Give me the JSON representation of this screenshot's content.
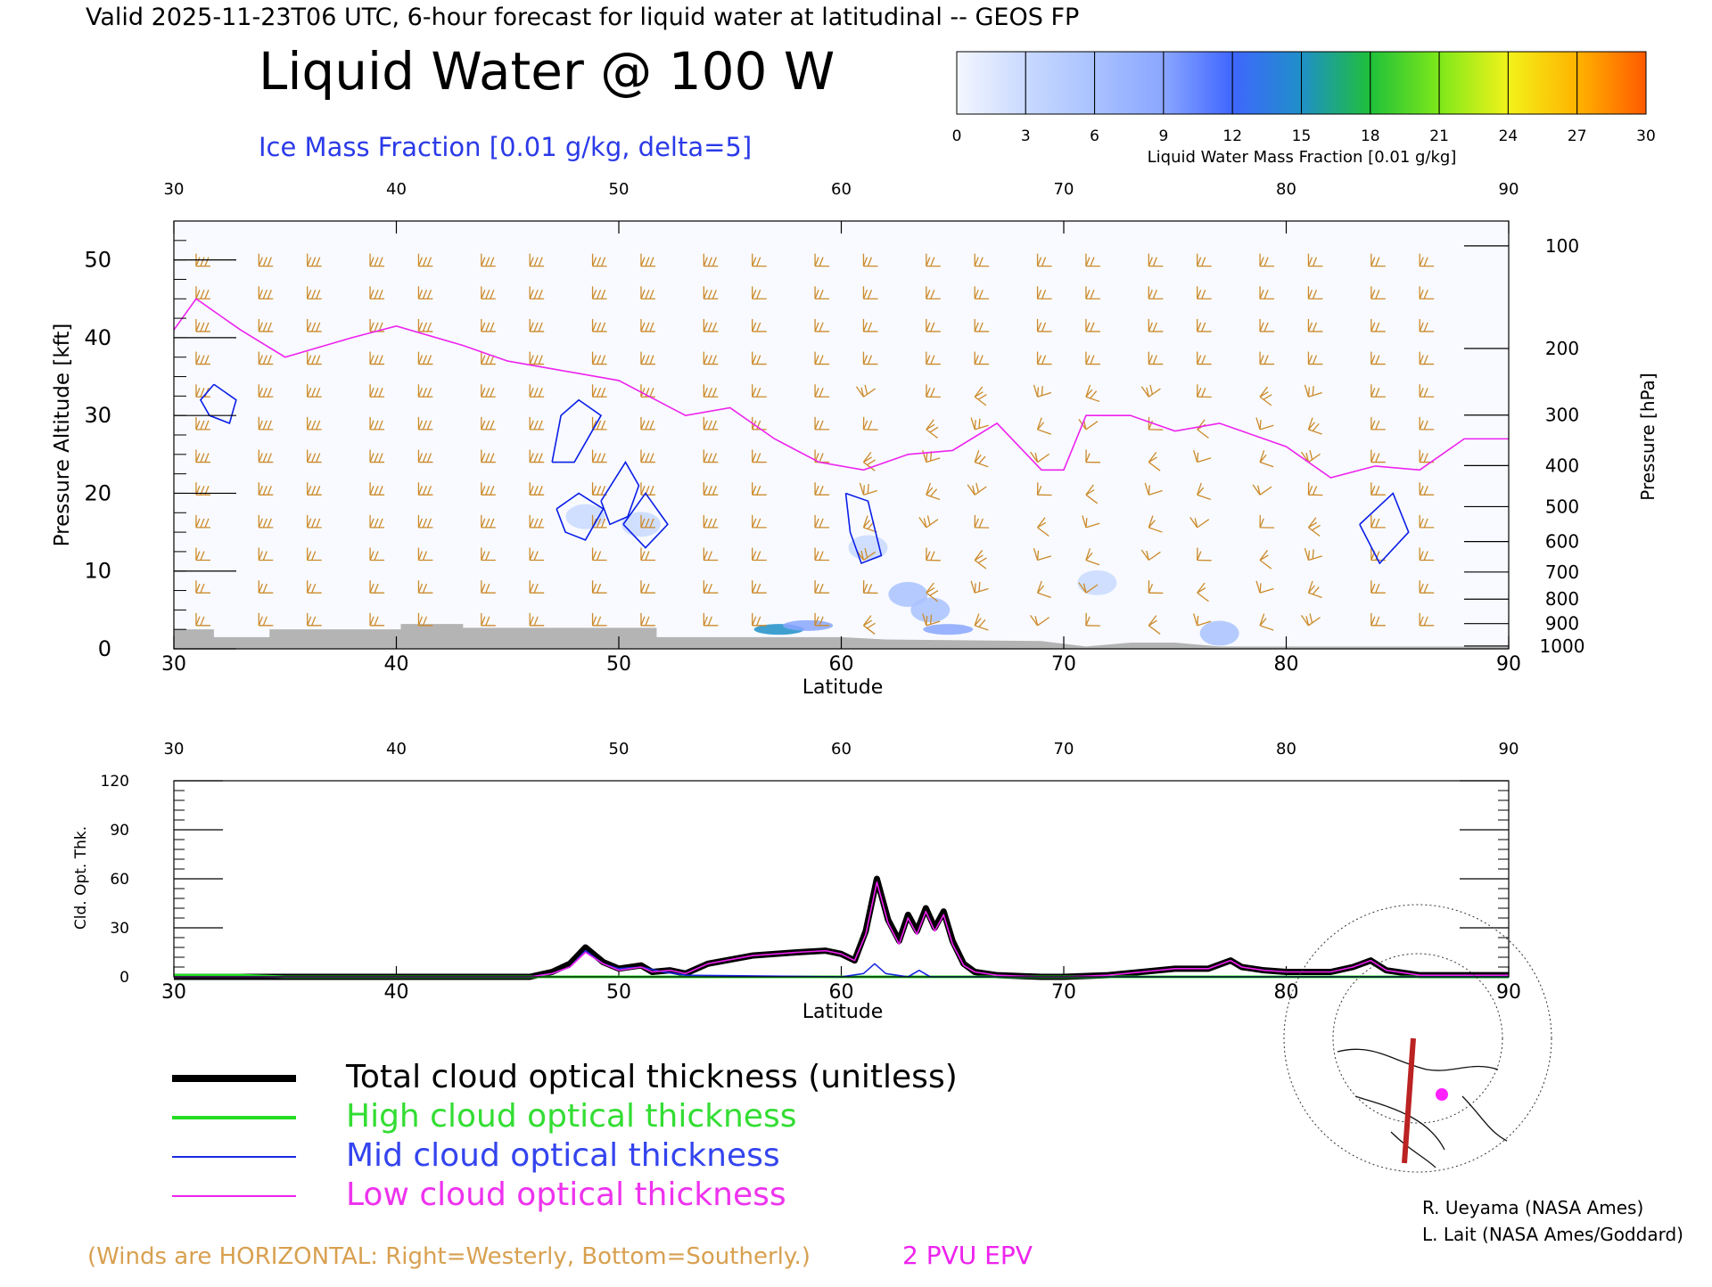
{
  "header": {
    "valid_line": "Valid 2025-11-23T06 UTC, 6-hour forecast for liquid water at latitudinal -- GEOS FP",
    "main_title": "Liquid Water @ 100 W",
    "subtitle": "Ice Mass Fraction [0.01 g/kg, delta=5]"
  },
  "colorbar": {
    "label": "Liquid Water Mass Fraction [0.01 g/kg]",
    "ticks": [
      "0",
      "3",
      "6",
      "9",
      "12",
      "15",
      "18",
      "21",
      "24",
      "27",
      "30"
    ],
    "colors": [
      "#f4f7ff",
      "#c9d9ff",
      "#a9c2ff",
      "#8aa6ff",
      "#3f66ff",
      "#1f8fc8",
      "#1fc03a",
      "#7ee81a",
      "#f2f21a",
      "#ffb300",
      "#ff5a00"
    ]
  },
  "colors": {
    "wind_barb": "#cc8a2a",
    "ice_contour": "#0a1ee6",
    "epv_line": "#ee22ee",
    "terrain": "#b4b4b4",
    "total": "#000000",
    "high": "#22dd22",
    "mid": "#1a2ae0",
    "low": "#ee22ee"
  },
  "chart_data": [
    {
      "type": "heatmap",
      "xlabel": "Latitude",
      "ylabel_left": "Pressure Altitude [kft]",
      "ylabel_right": "Pressure [hPa]",
      "xlim": [
        30,
        90
      ],
      "ylim": [
        0,
        55
      ],
      "x_ticks": [
        "30",
        "40",
        "50",
        "60",
        "70",
        "80",
        "90"
      ],
      "y_ticks_left": [
        "0",
        "10",
        "20",
        "30",
        "40",
        "50"
      ],
      "pressure_levels": [
        "100",
        "200",
        "300",
        "400",
        "500",
        "600",
        "700",
        "800",
        "900",
        "1000"
      ],
      "two_pvu_epv_kft": [
        [
          30,
          41
        ],
        [
          31,
          45
        ],
        [
          33,
          41
        ],
        [
          35,
          37.5
        ],
        [
          38,
          40
        ],
        [
          40,
          41.5
        ],
        [
          43,
          39
        ],
        [
          45,
          37
        ],
        [
          47,
          36
        ],
        [
          50,
          34.5
        ],
        [
          53,
          30
        ],
        [
          55,
          31
        ],
        [
          57,
          27
        ],
        [
          59,
          24
        ],
        [
          61,
          23
        ],
        [
          63,
          25
        ],
        [
          65,
          25.5
        ],
        [
          67,
          29
        ],
        [
          69,
          23
        ],
        [
          70,
          23
        ],
        [
          71,
          30
        ],
        [
          73,
          30
        ],
        [
          75,
          28
        ],
        [
          77,
          29
        ],
        [
          78,
          28
        ],
        [
          80,
          26
        ],
        [
          82,
          22
        ],
        [
          84,
          23.5
        ],
        [
          86,
          23
        ],
        [
          88,
          27
        ],
        [
          90,
          27
        ]
      ],
      "ice_mass_fraction_contours_5": [
        [
          [
            31.8,
            34
          ],
          [
            32.8,
            32
          ],
          [
            32.5,
            29
          ],
          [
            31.6,
            30
          ],
          [
            31.2,
            32
          ],
          [
            31.8,
            34
          ]
        ],
        [
          [
            47.0,
            24
          ],
          [
            47.4,
            30
          ],
          [
            48.2,
            32
          ],
          [
            49.2,
            30
          ],
          [
            48.0,
            24
          ],
          [
            47.0,
            24
          ]
        ],
        [
          [
            47.2,
            18
          ],
          [
            48.2,
            20
          ],
          [
            49.3,
            18
          ],
          [
            48.5,
            14
          ],
          [
            47.6,
            15
          ],
          [
            47.2,
            18
          ]
        ],
        [
          [
            49.2,
            19
          ],
          [
            50.3,
            24
          ],
          [
            50.9,
            21
          ],
          [
            50.4,
            17
          ],
          [
            49.6,
            16
          ],
          [
            49.2,
            19
          ]
        ],
        [
          [
            50.2,
            16
          ],
          [
            51.2,
            20
          ],
          [
            52.2,
            16
          ],
          [
            51.2,
            13
          ],
          [
            50.2,
            16
          ]
        ],
        [
          [
            60.2,
            20
          ],
          [
            61.2,
            19
          ],
          [
            61.8,
            12
          ],
          [
            60.9,
            11
          ],
          [
            60.4,
            15
          ],
          [
            60.2,
            20
          ]
        ],
        [
          [
            83.3,
            16
          ],
          [
            84.8,
            20
          ],
          [
            85.5,
            15
          ],
          [
            84.2,
            11
          ],
          [
            83.3,
            16
          ]
        ]
      ],
      "liquid_water_cells": [
        {
          "lat": 48.5,
          "kft": 17,
          "value": 3
        },
        {
          "lat": 51,
          "kft": 16,
          "value": 3
        },
        {
          "lat": 61.2,
          "kft": 13,
          "value": 3
        },
        {
          "lat": 63,
          "kft": 7,
          "value": 6
        },
        {
          "lat": 64,
          "kft": 5,
          "value": 6
        },
        {
          "lat": 57.2,
          "kft": 2.5,
          "value": 15
        },
        {
          "lat": 58.5,
          "kft": 3,
          "value": 9
        },
        {
          "lat": 64.8,
          "kft": 2.5,
          "value": 9
        },
        {
          "lat": 71.5,
          "kft": 8.5,
          "value": 3
        },
        {
          "lat": 77,
          "kft": 2,
          "value": 6
        }
      ],
      "terrain_kft": [
        [
          30,
          2.5
        ],
        [
          31.8,
          2.5
        ],
        [
          31.8,
          1.5
        ],
        [
          34.3,
          1.5
        ],
        [
          34.3,
          2.5
        ],
        [
          40.2,
          2.5
        ],
        [
          40.2,
          3.2
        ],
        [
          43,
          3.2
        ],
        [
          43,
          2.7
        ],
        [
          51.7,
          2.7
        ],
        [
          51.7,
          1.5
        ],
        [
          60,
          1.5
        ],
        [
          62,
          1.2
        ],
        [
          69,
          1.0
        ],
        [
          71,
          0.3
        ],
        [
          73,
          0.8
        ],
        [
          75,
          0.8
        ],
        [
          77,
          0.3
        ],
        [
          90,
          0.3
        ]
      ]
    },
    {
      "type": "line",
      "xlabel": "Latitude",
      "ylabel": "Cld. Opt. Thk.",
      "xlim": [
        30,
        90
      ],
      "ylim": [
        0,
        120
      ],
      "y_ticks": [
        "0",
        "30",
        "60",
        "90",
        "120"
      ],
      "x_ticks": [
        "30",
        "40",
        "50",
        "60",
        "70",
        "80",
        "90"
      ],
      "series": [
        {
          "name": "Total cloud optical thickness (unitless)",
          "color": "#000000",
          "x": [
            30,
            46,
            47,
            47.8,
            48.5,
            49.3,
            50,
            51,
            51.5,
            52.3,
            53,
            54,
            56,
            58,
            59.3,
            60,
            60.6,
            61.1,
            61.6,
            62.1,
            62.6,
            63.0,
            63.4,
            63.8,
            64.2,
            64.6,
            65.0,
            65.5,
            66,
            67,
            69,
            70,
            72,
            75,
            76.5,
            77.5,
            78,
            79,
            80,
            82,
            83,
            83.8,
            84.5,
            85.5,
            86,
            88,
            90
          ],
          "y": [
            0,
            0,
            3,
            8,
            18,
            9,
            5,
            7,
            3,
            4,
            2,
            8,
            13,
            15,
            16,
            14,
            10,
            28,
            60,
            35,
            22,
            38,
            28,
            42,
            30,
            40,
            22,
            8,
            3,
            1,
            0,
            0,
            1,
            5,
            5,
            10,
            6,
            4,
            3,
            3,
            6,
            10,
            4,
            2,
            1,
            1,
            1
          ]
        },
        {
          "name": "High cloud optical thickness",
          "color": "#22dd22",
          "x": [
            30,
            33,
            35,
            90
          ],
          "y": [
            1,
            1,
            0,
            0
          ]
        },
        {
          "name": "Mid cloud optical thickness",
          "color": "#1a2ae0",
          "x": [
            30,
            46,
            47,
            47.8,
            48.5,
            49.3,
            50,
            51,
            52,
            53,
            60,
            61,
            61.5,
            62,
            63,
            63.5,
            64,
            65,
            90
          ],
          "y": [
            0,
            0,
            2,
            6,
            16,
            8,
            5,
            6,
            3,
            1,
            0,
            2,
            8,
            2,
            0,
            4,
            0,
            0,
            0
          ]
        },
        {
          "name": "Low cloud optical thickness",
          "color": "#ee22ee",
          "x": [
            30,
            46,
            47,
            47.8,
            48.5,
            49.3,
            50,
            51,
            51.5,
            52.3,
            53,
            54,
            56,
            58,
            59.3,
            60,
            60.6,
            61.1,
            61.6,
            62.1,
            62.6,
            63.0,
            63.4,
            63.8,
            64.2,
            64.6,
            65.0,
            65.5,
            66,
            67,
            69,
            70,
            72,
            75,
            76.5,
            77.5,
            78,
            79,
            80,
            82,
            83,
            83.8,
            84.5,
            85.5,
            86,
            88,
            90
          ],
          "y": [
            0,
            0,
            2,
            6,
            15,
            8,
            4,
            6,
            3,
            4,
            2,
            8,
            13,
            15,
            16,
            14,
            10,
            26,
            58,
            33,
            20,
            36,
            26,
            40,
            28,
            38,
            20,
            7,
            3,
            1,
            0,
            0,
            1,
            5,
            5,
            10,
            6,
            4,
            3,
            3,
            6,
            10,
            4,
            2,
            1,
            1,
            1
          ]
        }
      ]
    }
  ],
  "legend": {
    "total": "Total cloud optical thickness (unitless)",
    "high": "High cloud optical thickness",
    "mid": "Mid cloud optical thickness",
    "low": "Low cloud optical thickness"
  },
  "footer": {
    "winds_note": "(Winds are HORIZONTAL: Right=Westerly, Bottom=Southerly.)",
    "epv_note": "2 PVU EPV",
    "credit1": "R. Ueyama (NASA Ames)",
    "credit2": "L. Lait (NASA Ames/Goddard)"
  }
}
